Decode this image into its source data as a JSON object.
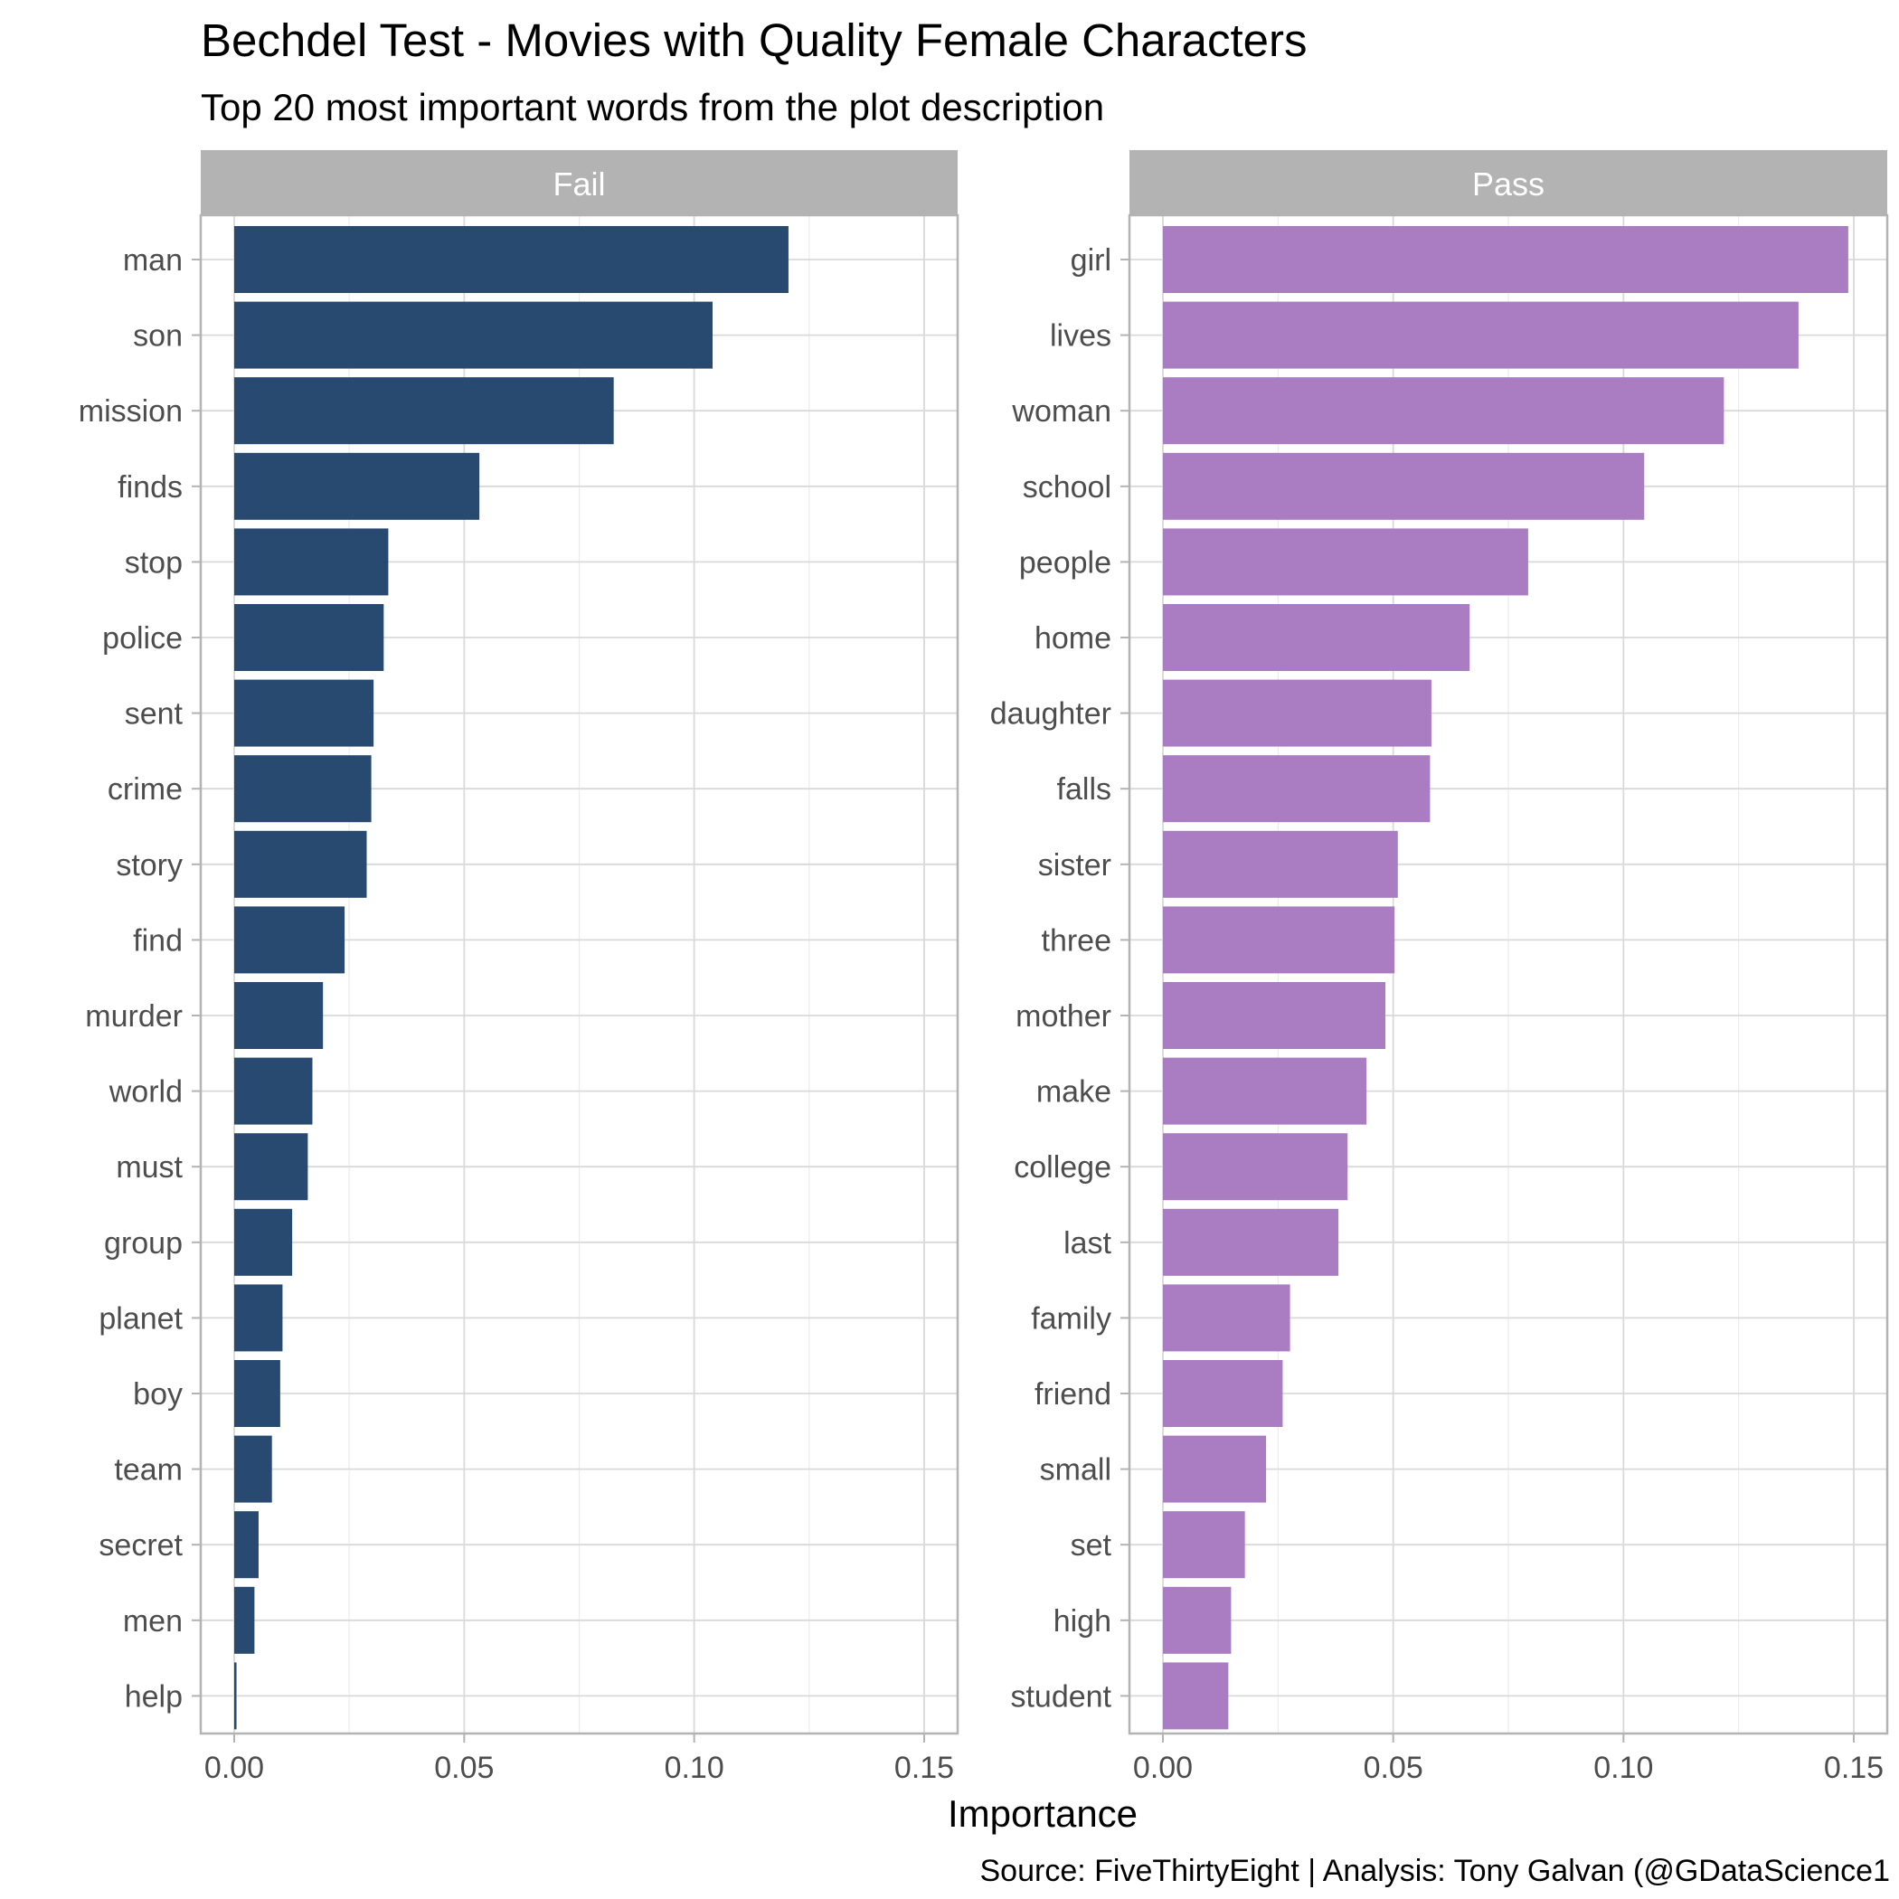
{
  "title": "Bechdel Test - Movies with Quality Female Characters",
  "subtitle": "Top 20 most important words from the plot description",
  "caption": "Source: FiveThirtyEight  |  Analysis: Tony Galvan (@GDataScience1",
  "chart_data": [
    {
      "type": "bar",
      "orientation": "horizontal",
      "facet": "Fail",
      "color": "#284A70",
      "xlabel": "Importance",
      "xlim": [
        0,
        0.15
      ],
      "xticks": [
        "0.00",
        "0.05",
        "0.10",
        "0.15"
      ],
      "grid": true,
      "categories": [
        "man",
        "son",
        "mission",
        "finds",
        "stop",
        "police",
        "sent",
        "crime",
        "story",
        "find",
        "murder",
        "world",
        "must",
        "group",
        "planet",
        "boy",
        "team",
        "secret",
        "men",
        "help"
      ],
      "values": [
        0.1205,
        0.104,
        0.0825,
        0.0533,
        0.0335,
        0.0325,
        0.0303,
        0.0298,
        0.0288,
        0.024,
        0.0193,
        0.017,
        0.016,
        0.0126,
        0.0105,
        0.01,
        0.0082,
        0.0053,
        0.0044,
        0.0005
      ]
    },
    {
      "type": "bar",
      "orientation": "horizontal",
      "facet": "Pass",
      "color": "#AA7DC2",
      "xlabel": "Importance",
      "xlim": [
        0,
        0.15
      ],
      "xticks": [
        "0.00",
        "0.05",
        "0.10",
        "0.15"
      ],
      "grid": true,
      "categories": [
        "girl",
        "lives",
        "woman",
        "school",
        "people",
        "home",
        "daughter",
        "falls",
        "sister",
        "three",
        "mother",
        "make",
        "college",
        "last",
        "family",
        "friend",
        "small",
        "set",
        "high",
        "student"
      ],
      "values": [
        0.1488,
        0.138,
        0.1218,
        0.1045,
        0.0793,
        0.0666,
        0.0583,
        0.058,
        0.051,
        0.0503,
        0.0483,
        0.0442,
        0.0401,
        0.0381,
        0.0276,
        0.026,
        0.0224,
        0.0178,
        0.0148,
        0.0142
      ]
    }
  ]
}
